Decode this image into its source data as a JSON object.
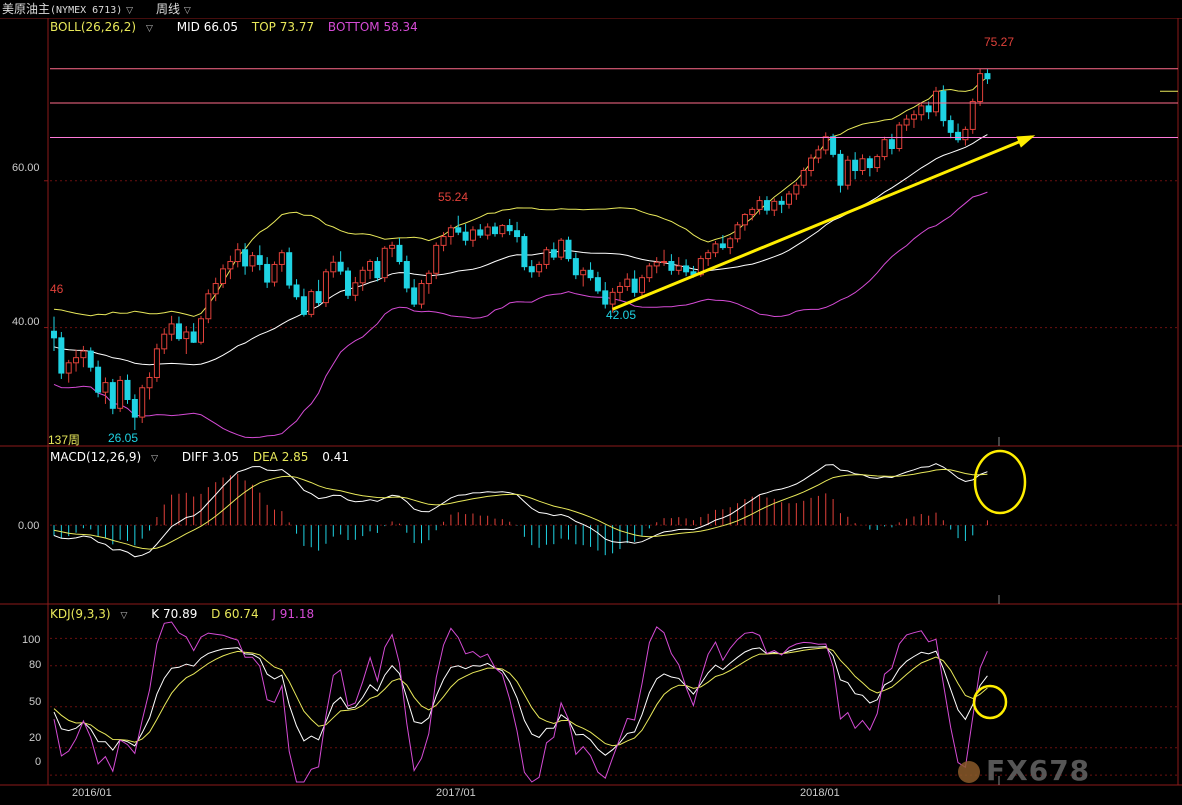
{
  "header": {
    "symbol_name": "美原油主",
    "symbol_code": "(NYMEX 6713)",
    "period": "周线"
  },
  "boll": {
    "label": "BOLL(26,26,2)",
    "mid": "MID 66.05",
    "top": "TOP 73.77",
    "bottom": "BOTTOM 58.34"
  },
  "macd": {
    "label": "MACD(12,26,9)",
    "diff": "DIFF 3.05",
    "dea": "DEA 2.85",
    "macd": "0.41"
  },
  "kdj": {
    "label": "KDJ(9,3,3)",
    "k": "K 70.89",
    "d": "D 60.74",
    "j": "J 91.18"
  },
  "annotations": {
    "high_2017": "55.24",
    "low_2017": "42.05",
    "low_2016": "26.05",
    "high_2018": "75.27",
    "left_cut": "46",
    "bars": "137周"
  },
  "y_ticks": {
    "price": [
      "60.00",
      "40.00"
    ],
    "macd": [
      "0.00"
    ],
    "kdj": [
      "100",
      "80",
      "50",
      "20",
      "0"
    ]
  },
  "x_ticks": [
    "2016/01",
    "2017/01",
    "2018/01"
  ],
  "watermark": "FX678",
  "colors": {
    "up": "#e0413a",
    "down": "#1fd3e3",
    "boll_mid": "#ffffff",
    "boll_top": "#e8e85a",
    "boll_bottom": "#d54bd5",
    "diff": "#ffffff",
    "dea": "#e8e85a",
    "j": "#d54bd5",
    "trend": "#ffee00",
    "level": "#ff6b8a"
  },
  "chart_data": {
    "type": "candlestick",
    "title": "美原油主 (NYMEX 6713) 周线",
    "x_start": "2016/01",
    "candles": [
      [
        39.5,
        41.5,
        36.8,
        38.6
      ],
      [
        38.6,
        39.4,
        33.0,
        33.8
      ],
      [
        33.8,
        35.6,
        32.5,
        35.2
      ],
      [
        35.2,
        37.0,
        34.0,
        35.9
      ],
      [
        35.9,
        37.5,
        34.6,
        36.8
      ],
      [
        36.8,
        37.3,
        34.0,
        34.6
      ],
      [
        34.6,
        35.5,
        30.5,
        31.2
      ],
      [
        31.2,
        33.2,
        29.6,
        32.5
      ],
      [
        32.5,
        33.0,
        28.2,
        29.0
      ],
      [
        29.0,
        33.4,
        28.5,
        32.8
      ],
      [
        32.8,
        33.6,
        29.6,
        30.2
      ],
      [
        30.2,
        30.9,
        26.05,
        27.8
      ],
      [
        27.8,
        32.2,
        27.0,
        31.8
      ],
      [
        31.8,
        33.9,
        30.2,
        33.2
      ],
      [
        33.2,
        37.8,
        32.6,
        37.1
      ],
      [
        37.1,
        39.9,
        36.4,
        39.1
      ],
      [
        39.1,
        41.6,
        38.2,
        40.5
      ],
      [
        40.5,
        41.5,
        38.2,
        38.5
      ],
      [
        38.5,
        40.2,
        36.4,
        39.4
      ],
      [
        39.4,
        40.6,
        37.9,
        38.0
      ],
      [
        38.0,
        41.6,
        37.7,
        41.2
      ],
      [
        41.2,
        45.2,
        40.6,
        44.6
      ],
      [
        44.6,
        46.8,
        43.6,
        46.0
      ],
      [
        46.0,
        48.6,
        45.4,
        48.0
      ],
      [
        48.0,
        49.8,
        46.6,
        49.0
      ],
      [
        49.0,
        51.5,
        48.2,
        50.6
      ],
      [
        50.6,
        51.5,
        47.2,
        48.4
      ],
      [
        48.4,
        50.3,
        47.6,
        49.8
      ],
      [
        49.8,
        51.2,
        47.8,
        48.6
      ],
      [
        48.6,
        49.6,
        45.4,
        46.2
      ],
      [
        46.2,
        49.0,
        45.6,
        48.6
      ],
      [
        48.6,
        50.6,
        47.6,
        50.2
      ],
      [
        50.2,
        50.9,
        45.3,
        45.8
      ],
      [
        45.8,
        46.6,
        43.8,
        44.2
      ],
      [
        44.2,
        45.3,
        41.5,
        41.8
      ],
      [
        41.8,
        45.2,
        41.4,
        44.9
      ],
      [
        44.9,
        46.5,
        43.0,
        43.4
      ],
      [
        43.4,
        48.0,
        42.8,
        47.6
      ],
      [
        47.6,
        49.8,
        46.8,
        48.9
      ],
      [
        48.9,
        50.4,
        47.2,
        47.7
      ],
      [
        47.7,
        48.2,
        43.9,
        44.4
      ],
      [
        44.4,
        46.9,
        43.6,
        46.1
      ],
      [
        46.1,
        48.3,
        45.0,
        47.8
      ],
      [
        47.8,
        49.3,
        46.6,
        49.0
      ],
      [
        49.0,
        49.6,
        46.3,
        46.8
      ],
      [
        46.8,
        51.1,
        46.2,
        50.8
      ],
      [
        50.8,
        51.7,
        49.6,
        51.2
      ],
      [
        51.2,
        52.2,
        48.6,
        49.0
      ],
      [
        49.0,
        49.8,
        44.8,
        45.4
      ],
      [
        45.4,
        46.6,
        42.8,
        43.2
      ],
      [
        43.2,
        46.5,
        42.6,
        46.0
      ],
      [
        46.0,
        47.8,
        44.6,
        47.4
      ],
      [
        47.4,
        51.6,
        46.6,
        51.2
      ],
      [
        51.2,
        53.0,
        50.4,
        52.4
      ],
      [
        52.4,
        54.0,
        51.3,
        53.6
      ],
      [
        53.6,
        55.24,
        52.6,
        53.0
      ],
      [
        53.0,
        54.1,
        51.2,
        51.9
      ],
      [
        51.9,
        53.8,
        51.0,
        53.3
      ],
      [
        53.3,
        54.1,
        52.2,
        52.6
      ],
      [
        52.6,
        54.2,
        52.0,
        53.7
      ],
      [
        53.7,
        54.3,
        52.4,
        52.8
      ],
      [
        52.8,
        54.1,
        52.3,
        53.9
      ],
      [
        53.9,
        54.8,
        52.6,
        53.2
      ],
      [
        53.2,
        54.4,
        51.6,
        52.4
      ],
      [
        52.4,
        52.8,
        47.8,
        48.3
      ],
      [
        48.3,
        49.2,
        46.8,
        47.6
      ],
      [
        47.6,
        49.0,
        46.9,
        48.6
      ],
      [
        48.6,
        51.0,
        48.0,
        50.6
      ],
      [
        50.6,
        51.6,
        49.2,
        49.6
      ],
      [
        49.6,
        52.2,
        49.2,
        51.9
      ],
      [
        51.9,
        52.4,
        49.0,
        49.4
      ],
      [
        49.4,
        50.2,
        46.6,
        47.2
      ],
      [
        47.2,
        48.2,
        45.6,
        47.8
      ],
      [
        47.8,
        48.9,
        46.4,
        46.8
      ],
      [
        46.8,
        47.6,
        44.6,
        45.0
      ],
      [
        45.0,
        46.2,
        42.6,
        43.2
      ],
      [
        43.2,
        45.4,
        42.05,
        44.8
      ],
      [
        44.8,
        46.2,
        43.6,
        45.6
      ],
      [
        45.6,
        47.4,
        45.0,
        46.6
      ],
      [
        46.6,
        47.8,
        44.2,
        44.8
      ],
      [
        44.8,
        47.2,
        44.1,
        46.8
      ],
      [
        46.8,
        48.8,
        46.2,
        48.4
      ],
      [
        48.4,
        49.6,
        47.4,
        48.9
      ],
      [
        48.9,
        50.6,
        48.4,
        49.0
      ],
      [
        49.0,
        50.0,
        47.2,
        47.8
      ],
      [
        47.8,
        49.6,
        47.2,
        48.4
      ],
      [
        48.4,
        49.3,
        47.0,
        47.6
      ],
      [
        47.6,
        48.4,
        46.8,
        47.2
      ],
      [
        47.2,
        49.8,
        46.9,
        49.4
      ],
      [
        49.4,
        50.6,
        48.4,
        50.2
      ],
      [
        50.2,
        51.8,
        49.6,
        51.4
      ],
      [
        51.4,
        52.6,
        50.6,
        50.9
      ],
      [
        50.9,
        52.4,
        50.0,
        52.1
      ],
      [
        52.1,
        54.4,
        51.6,
        54.0
      ],
      [
        54.0,
        55.6,
        53.2,
        55.4
      ],
      [
        55.4,
        56.4,
        54.6,
        56.1
      ],
      [
        56.1,
        57.9,
        55.4,
        57.3
      ],
      [
        57.3,
        57.9,
        55.4,
        56.0
      ],
      [
        56.0,
        57.6,
        55.2,
        57.2
      ],
      [
        57.2,
        57.9,
        55.6,
        56.8
      ],
      [
        56.8,
        58.6,
        56.2,
        58.2
      ],
      [
        58.2,
        59.8,
        57.4,
        59.4
      ],
      [
        59.4,
        61.8,
        59.0,
        61.4
      ],
      [
        61.4,
        63.6,
        60.6,
        63.1
      ],
      [
        63.1,
        64.8,
        62.4,
        64.2
      ],
      [
        64.2,
        66.6,
        63.6,
        66.0
      ],
      [
        66.0,
        66.4,
        63.2,
        63.6
      ],
      [
        63.6,
        64.2,
        58.4,
        59.4
      ],
      [
        59.4,
        63.4,
        58.8,
        62.8
      ],
      [
        62.8,
        63.9,
        60.2,
        61.4
      ],
      [
        61.4,
        63.6,
        60.8,
        63.0
      ],
      [
        63.0,
        63.4,
        60.6,
        61.8
      ],
      [
        61.8,
        63.6,
        61.2,
        63.3
      ],
      [
        63.3,
        66.0,
        62.8,
        65.6
      ],
      [
        65.6,
        66.4,
        63.6,
        64.4
      ],
      [
        64.4,
        68.0,
        64.0,
        67.6
      ],
      [
        67.6,
        69.0,
        66.8,
        68.4
      ],
      [
        68.4,
        69.6,
        67.2,
        69.0
      ],
      [
        69.0,
        70.6,
        68.2,
        70.2
      ],
      [
        70.2,
        70.8,
        68.4,
        69.4
      ],
      [
        69.4,
        72.8,
        68.8,
        72.2
      ],
      [
        72.2,
        73.0,
        67.4,
        68.2
      ],
      [
        68.2,
        68.9,
        65.8,
        66.6
      ],
      [
        66.6,
        67.8,
        65.2,
        65.6
      ],
      [
        65.6,
        67.4,
        64.8,
        67.0
      ],
      [
        67.0,
        71.2,
        66.4,
        70.8
      ],
      [
        70.8,
        75.27,
        70.2,
        74.6
      ],
      [
        74.6,
        75.2,
        73.2,
        73.9
      ]
    ],
    "boll": {
      "mid": 66.05,
      "top": 73.77,
      "bottom": 58.34,
      "period": 26
    },
    "levels": [
      75.27,
      70.6,
      65.9
    ],
    "trendline": {
      "from": {
        "bar": 76,
        "price": 42.5
      },
      "to": {
        "bar": 133,
        "price": 66.0
      }
    },
    "macd": {
      "diff": 3.05,
      "dea": 2.85,
      "macd": 0.41
    },
    "kdj": {
      "k": 70.89,
      "d": 60.74,
      "j": 91.18
    },
    "y_range_price": [
      24,
      80
    ],
    "y_range_macd": [
      -5,
      3.8
    ],
    "y_range_kdj": [
      -5,
      112
    ],
    "grid": true
  }
}
